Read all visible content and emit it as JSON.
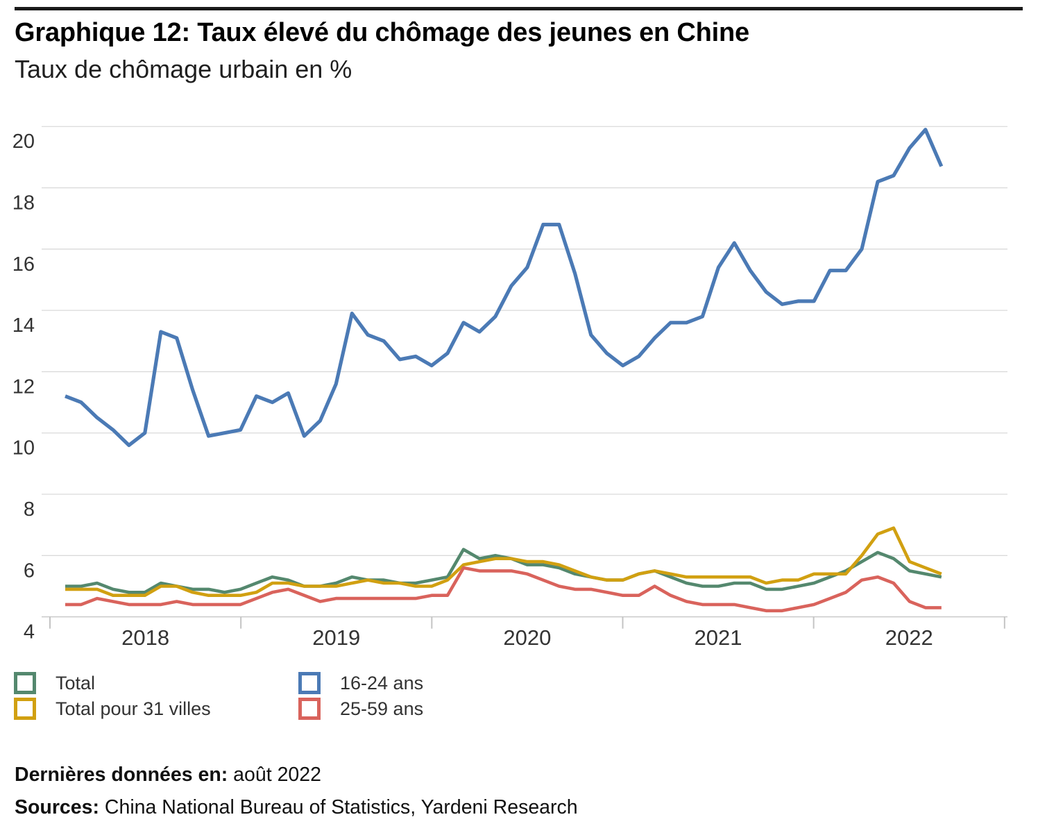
{
  "header": {
    "title": "Graphique 12: Taux élevé du chômage des jeunes en Chine",
    "subtitle": "Taux de chômage urbain en %"
  },
  "footer": {
    "latest_label": "Dernières données en:",
    "latest_value": " août 2022",
    "sources_label": "Sources:",
    "sources_value": " China National Bureau of Statistics, Yardeni Research"
  },
  "legend": [
    {
      "label": "Total",
      "color": "#54886e"
    },
    {
      "label": "Total pour 31 villes",
      "color": "#d1a011"
    },
    {
      "label": "16-24 ans",
      "color": "#4b7ab5"
    },
    {
      "label": "25-59 ans",
      "color": "#d9635c"
    }
  ],
  "colors": {
    "grid": "#dadada",
    "axis": "#cccccc",
    "tick": "#c4c4c4",
    "axis_text": "#333333",
    "title_rule": "#1a1a1a"
  },
  "chart_data": {
    "type": "line",
    "title": "Graphique 12: Taux élevé du chômage des jeunes en Chine",
    "subtitle": "Taux de chômage urbain en %",
    "x_unit": "month",
    "x_start": "2018-01",
    "x_end": "2022-08",
    "xlabels": [
      "2018",
      "2019",
      "2020",
      "2021",
      "2022"
    ],
    "ylim": [
      4,
      20
    ],
    "ytick_step": 2,
    "grid": "horizontal",
    "legend_position": "bottom",
    "series": [
      {
        "name": "Total",
        "color": "#54886e",
        "values": [
          5.0,
          5.0,
          5.1,
          4.9,
          4.8,
          4.8,
          5.1,
          5.0,
          4.9,
          4.9,
          4.8,
          4.9,
          5.1,
          5.3,
          5.2,
          5.0,
          5.0,
          5.1,
          5.3,
          5.2,
          5.2,
          5.1,
          5.1,
          5.2,
          5.3,
          6.2,
          5.9,
          6.0,
          5.9,
          5.7,
          5.7,
          5.6,
          5.4,
          5.3,
          5.2,
          5.2,
          5.4,
          5.5,
          5.3,
          5.1,
          5.0,
          5.0,
          5.1,
          5.1,
          4.9,
          4.9,
          5.0,
          5.1,
          5.3,
          5.5,
          5.8,
          6.1,
          5.9,
          5.5,
          5.4,
          5.3
        ]
      },
      {
        "name": "Total pour 31 villes",
        "color": "#d1a011",
        "values": [
          4.9,
          4.9,
          4.9,
          4.7,
          4.7,
          4.7,
          5.0,
          5.0,
          4.8,
          4.7,
          4.7,
          4.7,
          4.8,
          5.1,
          5.1,
          5.0,
          5.0,
          5.0,
          5.1,
          5.2,
          5.1,
          5.1,
          5.0,
          5.0,
          5.2,
          5.7,
          5.8,
          5.9,
          5.9,
          5.8,
          5.8,
          5.7,
          5.5,
          5.3,
          5.2,
          5.2,
          5.4,
          5.5,
          5.4,
          5.3,
          5.3,
          5.3,
          5.3,
          5.3,
          5.1,
          5.2,
          5.2,
          5.4,
          5.4,
          5.4,
          6.0,
          6.7,
          6.9,
          5.8,
          5.6,
          5.4
        ]
      },
      {
        "name": "16-24 ans",
        "color": "#4b7ab5",
        "values": [
          11.2,
          11.0,
          10.5,
          10.1,
          9.6,
          10.0,
          13.3,
          13.1,
          11.4,
          9.9,
          10.0,
          10.1,
          11.2,
          11.0,
          11.3,
          9.9,
          10.4,
          11.6,
          13.9,
          13.2,
          13.0,
          12.4,
          12.5,
          12.2,
          12.6,
          13.6,
          13.3,
          13.8,
          14.8,
          15.4,
          16.8,
          16.8,
          15.2,
          13.2,
          12.6,
          12.2,
          12.5,
          13.1,
          13.6,
          13.6,
          13.8,
          15.4,
          16.2,
          15.3,
          14.6,
          14.2,
          14.3,
          14.3,
          15.3,
          15.3,
          16.0,
          18.2,
          18.4,
          19.3,
          19.9,
          18.7
        ]
      },
      {
        "name": "25-59 ans",
        "color": "#d9635c",
        "values": [
          4.4,
          4.4,
          4.6,
          4.5,
          4.4,
          4.4,
          4.4,
          4.5,
          4.4,
          4.4,
          4.4,
          4.4,
          4.6,
          4.8,
          4.9,
          4.7,
          4.5,
          4.6,
          4.6,
          4.6,
          4.6,
          4.6,
          4.6,
          4.7,
          4.7,
          5.6,
          5.5,
          5.5,
          5.5,
          5.4,
          5.2,
          5.0,
          4.9,
          4.9,
          4.8,
          4.7,
          4.7,
          5.0,
          4.7,
          4.5,
          4.4,
          4.4,
          4.4,
          4.3,
          4.2,
          4.2,
          4.3,
          4.4,
          4.6,
          4.8,
          5.2,
          5.3,
          5.1,
          4.5,
          4.3,
          4.3
        ]
      }
    ]
  }
}
